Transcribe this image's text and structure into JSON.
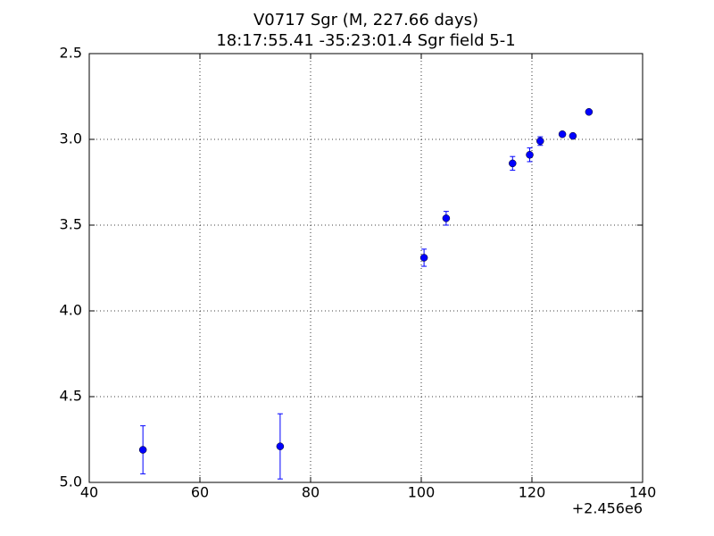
{
  "chart_data": {
    "type": "errorbar",
    "title": "V0717 Sgr  (M, 227.66 days)",
    "subtitle": "18:17:55.41 -35:23:01.4 Sgr field 5-1",
    "x_offset_label": "+2.456e6",
    "series": [
      {
        "color": "#0000ff",
        "x": [
          49.7,
          74.5,
          100.5,
          104.5,
          116.5,
          119.6,
          121.5,
          125.5,
          127.4,
          130.3
        ],
        "values": [
          4.81,
          4.79,
          3.69,
          3.46,
          3.14,
          3.09,
          3.01,
          2.97,
          2.98,
          2.84
        ],
        "errors": [
          0.14,
          0.19,
          0.05,
          0.04,
          0.04,
          0.04,
          0.025,
          0.01,
          0.01,
          0.01
        ]
      }
    ],
    "xlim": [
      40,
      140
    ],
    "xticks": [
      40,
      60,
      80,
      100,
      120,
      140
    ],
    "ylim": [
      2.5,
      5.0
    ],
    "y_inverted": true,
    "yticks": [
      2.5,
      {
        "value": 3.0,
        "label": "3.0"
      },
      3.5,
      {
        "value": 4.0,
        "label": "4.0"
      },
      4.5,
      {
        "value": 5.0,
        "label": "5.0"
      }
    ],
    "grid": true
  }
}
